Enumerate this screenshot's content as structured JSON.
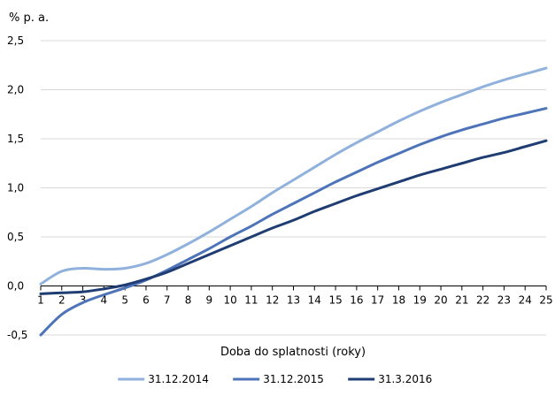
{
  "chart_data": {
    "type": "line",
    "title": "",
    "ylabel": "% p. a.",
    "xlabel": "Doba do splatnosti (roky)",
    "xlim": [
      1,
      25
    ],
    "ylim": [
      -0.5,
      2.5
    ],
    "grid": "horizontal",
    "legend_position": "bottom",
    "y_ticks": [
      -0.5,
      0.0,
      0.5,
      1.0,
      1.5,
      2.0,
      2.5
    ],
    "y_tick_labels": [
      "-0,5",
      "0,0",
      "0,5",
      "1,0",
      "1,5",
      "2,0",
      "2,5"
    ],
    "x": [
      1,
      2,
      3,
      4,
      5,
      6,
      7,
      8,
      9,
      10,
      11,
      12,
      13,
      14,
      15,
      16,
      17,
      18,
      19,
      20,
      21,
      22,
      23,
      24,
      25
    ],
    "x_tick_labels": [
      "1",
      "2",
      "3",
      "4",
      "5",
      "6",
      "7",
      "8",
      "9",
      "10",
      "11",
      "12",
      "13",
      "14",
      "15",
      "16",
      "17",
      "18",
      "19",
      "20",
      "21",
      "22",
      "23",
      "24",
      "25"
    ],
    "series": [
      {
        "name": "31.12.2014",
        "color": "#8fb1dc",
        "values": [
          0.02,
          0.15,
          0.18,
          0.17,
          0.18,
          0.23,
          0.32,
          0.43,
          0.55,
          0.68,
          0.81,
          0.95,
          1.08,
          1.21,
          1.34,
          1.46,
          1.57,
          1.68,
          1.78,
          1.87,
          1.95,
          2.03,
          2.1,
          2.16,
          2.22
        ]
      },
      {
        "name": "31.12.2015",
        "color": "#4d73b8",
        "values": [
          -0.5,
          -0.29,
          -0.17,
          -0.09,
          -0.02,
          0.06,
          0.16,
          0.27,
          0.38,
          0.5,
          0.61,
          0.73,
          0.84,
          0.95,
          1.06,
          1.16,
          1.26,
          1.35,
          1.44,
          1.52,
          1.59,
          1.65,
          1.71,
          1.76,
          1.81
        ]
      },
      {
        "name": "31.3.2016",
        "color": "#1f3d72",
        "values": [
          -0.08,
          -0.07,
          -0.06,
          -0.03,
          0.01,
          0.07,
          0.14,
          0.23,
          0.32,
          0.41,
          0.5,
          0.59,
          0.67,
          0.76,
          0.84,
          0.92,
          0.99,
          1.06,
          1.13,
          1.19,
          1.25,
          1.31,
          1.36,
          1.42,
          1.48
        ]
      }
    ]
  }
}
